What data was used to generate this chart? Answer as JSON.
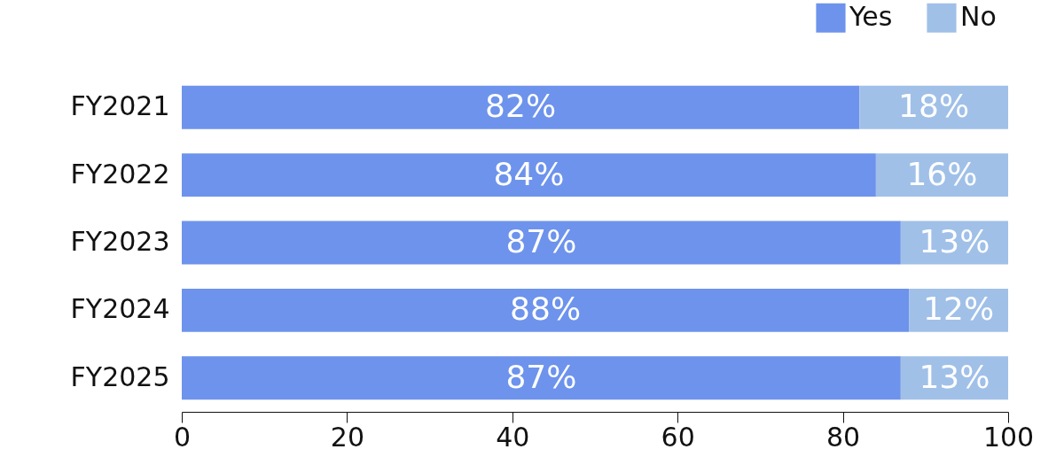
{
  "chart_data": {
    "type": "bar",
    "orientation": "horizontal",
    "stacked": true,
    "categories": [
      "FY2021",
      "FY2022",
      "FY2023",
      "FY2024",
      "FY2025"
    ],
    "series": [
      {
        "name": "Yes",
        "color": "#6d93ec",
        "values": [
          82,
          84,
          87,
          88,
          87
        ],
        "value_labels": [
          "82%",
          "84%",
          "87%",
          "88%",
          "87%"
        ]
      },
      {
        "name": "No",
        "color": "#a0c0e8",
        "values": [
          18,
          16,
          13,
          12,
          13
        ],
        "value_labels": [
          "18%",
          "16%",
          "13%",
          "12%",
          "13%"
        ]
      }
    ],
    "xlim": [
      0,
      100
    ],
    "xticks": [
      0,
      20,
      40,
      60,
      80,
      100
    ],
    "grid": false,
    "legend": "top right"
  }
}
